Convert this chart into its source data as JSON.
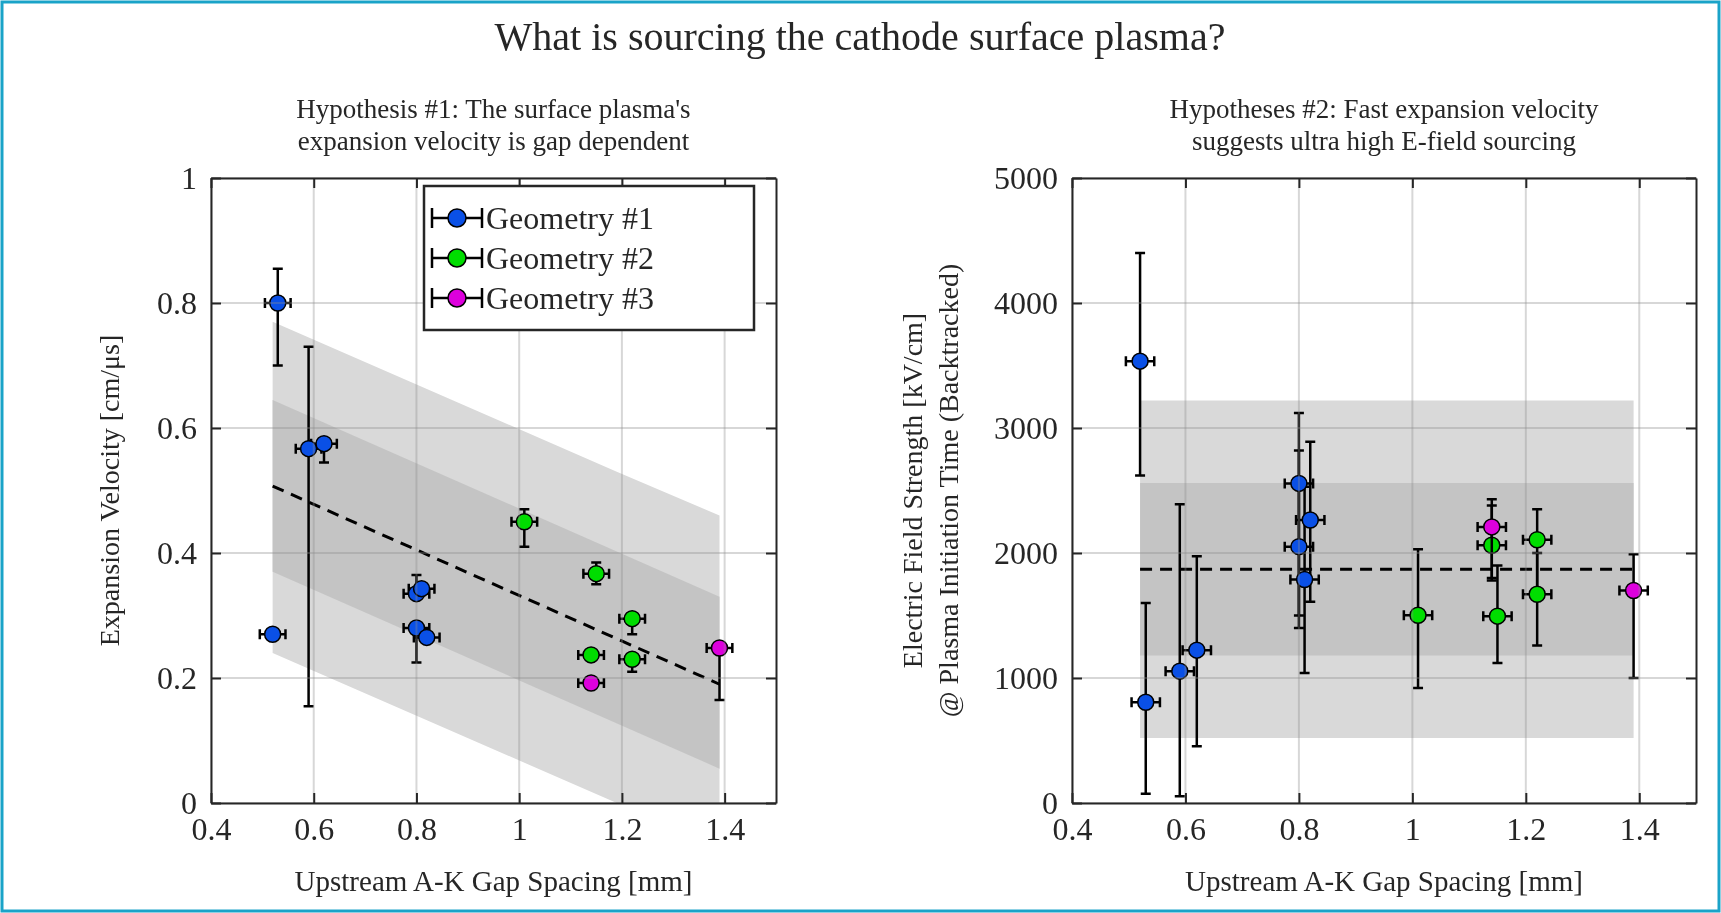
{
  "chart_data": [
    {
      "type": "scatter",
      "title": "What is sourcing the cathode surface plasma?",
      "subtitle": "Hypothesis #1: The surface plasma's\nexpansion velocity is gap dependent",
      "xlabel": "Upstream A-K Gap Spacing [mm]",
      "ylabel": "Expansion Velocity [cm/μs]",
      "xlim": [
        0.4,
        1.5
      ],
      "xticks": [
        0.4,
        0.6,
        0.8,
        1,
        1.2,
        1.4
      ],
      "ylim": [
        0,
        1
      ],
      "yticks": [
        0,
        0.2,
        0.4,
        0.6,
        0.8,
        1
      ],
      "grid": true,
      "legend": "top right",
      "series": [
        {
          "type": "line",
          "color": "#d9d9d9",
          "x": [
            0.52,
            1.19,
            1.39
          ],
          "values": [
            null,
            null,
            null
          ],
          "lower": [
            0.24,
            0,
            0
          ],
          "upper": [
            0.77,
            0.53,
            0.46
          ]
        },
        {
          "type": "line",
          "color": "#000000",
          "line_style": "dashed",
          "x": [
            0.52,
            1.39
          ],
          "values": [
            0.507,
            0.19
          ],
          "lower": [
            0.37,
            0.055
          ],
          "upper": [
            0.645,
            0.33
          ]
        },
        {
          "name": "Geometry #1",
          "color": "#0a50e6",
          "marker": "circle",
          "x": [
            0.52,
            0.53,
            0.59,
            0.62,
            0.8,
            0.81,
            0.8,
            0.82
          ],
          "values": [
            0.27,
            0.8,
            0.567,
            0.575,
            0.335,
            0.343,
            0.28,
            0.265
          ],
          "errors": [
            null,
            [
              0.7,
              0.855
            ],
            [
              0.155,
              0.73
            ],
            [
              0.545,
              0.575
            ],
            [
              0.335,
              0.365
            ],
            null,
            [
              0.225,
              0.28
            ],
            null
          ],
          "xerrors": [
            0.025,
            0.025,
            0.025,
            0.025,
            0.025,
            0.025,
            0.025,
            0.025
          ]
        },
        {
          "name": "Geometry #2",
          "color": "#00dd00",
          "marker": "circle",
          "x": [
            1.01,
            1.15,
            1.22,
            1.14,
            1.22
          ],
          "values": [
            0.45,
            0.367,
            0.295,
            0.237,
            0.23
          ],
          "errors": [
            [
              0.41,
              0.47
            ],
            [
              0.35,
              0.385
            ],
            [
              0.27,
              0.295
            ],
            null,
            [
              0.21,
              0.23
            ]
          ],
          "xerrors": [
            0.025,
            0.025,
            0.025,
            0.025,
            0.025
          ]
        },
        {
          "name": "Geometry #3",
          "color": "#dd00dd",
          "marker": "circle",
          "x": [
            1.14,
            1.39
          ],
          "values": [
            0.192,
            0.248
          ],
          "errors": [
            null,
            [
              0.165,
              0.248
            ]
          ],
          "xerrors": [
            0.025,
            0.025
          ]
        }
      ]
    },
    {
      "type": "scatter",
      "subtitle": "Hypotheses #2: Fast expansion velocity\nsuggests ultra high E-field sourcing",
      "xlabel": "Upstream A-K Gap Spacing [mm]",
      "ylabel": "Electric Field Strength [kV/cm]\n@ Plasma Initiation Time (Backtracked)",
      "xlim": [
        0.4,
        1.5
      ],
      "xticks": [
        0.4,
        0.6,
        0.8,
        1,
        1.2,
        1.4
      ],
      "ylim": [
        0,
        5000
      ],
      "yticks": [
        0,
        1000,
        2000,
        3000,
        4000,
        5000
      ],
      "grid": true,
      "series": [
        {
          "type": "line",
          "color": "#d9d9d9",
          "x": [
            0.52,
            1.39
          ],
          "values": [
            null,
            null
          ],
          "lower": [
            520,
            520
          ],
          "upper": [
            3220,
            3220
          ]
        },
        {
          "type": "line",
          "color": "#000000",
          "line_style": "dashed",
          "x": [
            0.52,
            1.39
          ],
          "values": [
            1870,
            1870
          ],
          "lower": [
            1180,
            1180
          ],
          "upper": [
            2560,
            2560
          ]
        },
        {
          "color": "#0a50e6",
          "marker": "circle",
          "x": [
            0.52,
            0.53,
            0.59,
            0.62,
            0.8,
            0.8,
            0.82,
            0.81
          ],
          "values": [
            3535,
            806,
            1055,
            1223,
            2557,
            2051,
            2264,
            1788
          ],
          "errors": [
            [
              2620,
              4400
            ],
            [
              75,
              1600
            ],
            [
              55,
              2390
            ],
            [
              455,
              1975
            ],
            [
              1500,
              3120
            ],
            [
              1400,
              2820
            ],
            [
              1610,
              2890
            ],
            [
              1040,
              2530
            ]
          ],
          "xerrors": [
            0.025,
            0.025,
            0.025,
            0.025,
            0.025,
            0.025,
            0.025,
            0.025
          ]
        },
        {
          "color": "#00dd00",
          "marker": "circle",
          "x": [
            1.01,
            1.14,
            1.15,
            1.22,
            1.22
          ],
          "values": [
            1502,
            2062,
            1495,
            2106,
            1670
          ],
          "errors": [
            [
              920,
              2030
            ],
            [
              1780,
              2380
            ],
            [
              1120,
              1900
            ],
            [
              1700,
              2350
            ],
            [
              1260,
              2000
            ]
          ],
          "xerrors": [
            0.025,
            0.025,
            0.025,
            0.025,
            0.025
          ]
        },
        {
          "color": "#dd00dd",
          "marker": "circle",
          "x": [
            1.14,
            1.39
          ],
          "values": [
            2209,
            1700
          ],
          "errors": [
            [
              1800,
              2430
            ],
            [
              1000,
              1990
            ]
          ],
          "xerrors": [
            0.025,
            0.025
          ]
        }
      ]
    }
  ]
}
